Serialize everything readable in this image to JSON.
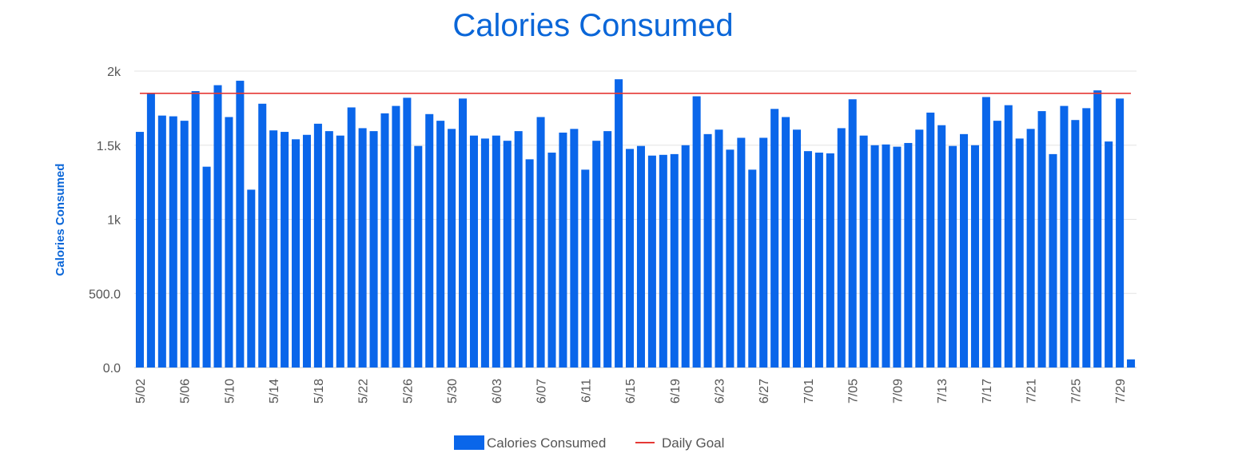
{
  "chart_data": {
    "type": "bar",
    "title": "Calories Consumed",
    "ylabel": "Calories Consumed",
    "xlabel": "",
    "ylim": [
      0,
      2000
    ],
    "y_ticks": [
      "0.0",
      "500.0",
      "1k",
      "1.5k",
      "2k"
    ],
    "y_tick_values": [
      0,
      500,
      1000,
      1500,
      2000
    ],
    "grid": true,
    "legend_position": "bottom",
    "categories": [
      "5/02",
      "5/03",
      "5/04",
      "5/05",
      "5/06",
      "5/07",
      "5/08",
      "5/09",
      "5/10",
      "5/11",
      "5/12",
      "5/13",
      "5/14",
      "5/15",
      "5/16",
      "5/17",
      "5/18",
      "5/19",
      "5/20",
      "5/21",
      "5/22",
      "5/23",
      "5/24",
      "5/25",
      "5/26",
      "5/27",
      "5/28",
      "5/29",
      "5/30",
      "5/31",
      "6/01",
      "6/02",
      "6/03",
      "6/04",
      "6/05",
      "6/06",
      "6/07",
      "6/08",
      "6/09",
      "6/10",
      "6/11",
      "6/12",
      "6/13",
      "6/14",
      "6/15",
      "6/16",
      "6/17",
      "6/18",
      "6/19",
      "6/20",
      "6/21",
      "6/22",
      "6/23",
      "6/24",
      "6/25",
      "6/26",
      "6/27",
      "6/28",
      "6/29",
      "6/30",
      "7/01",
      "7/02",
      "7/03",
      "7/04",
      "7/05",
      "7/06",
      "7/07",
      "7/08",
      "7/09",
      "7/10",
      "7/11",
      "7/12",
      "7/13",
      "7/14",
      "7/15",
      "7/16",
      "7/17",
      "7/18",
      "7/19",
      "7/20",
      "7/21",
      "7/22",
      "7/23",
      "7/24",
      "7/25",
      "7/26",
      "7/27",
      "7/28",
      "7/29",
      "7/30"
    ],
    "x_tick_labels": [
      "5/02",
      "5/06",
      "5/10",
      "5/14",
      "5/18",
      "5/22",
      "5/26",
      "5/30",
      "6/03",
      "6/07",
      "6/11",
      "6/15",
      "6/19",
      "6/23",
      "6/27",
      "7/01",
      "7/05",
      "7/09",
      "7/13",
      "7/17",
      "7/21",
      "7/25",
      "7/29"
    ],
    "series": [
      {
        "name": "Calories Consumed",
        "color": "#0a66ea",
        "values": [
          1590,
          1850,
          1700,
          1695,
          1665,
          1865,
          1355,
          1905,
          1690,
          1935,
          1200,
          1780,
          1600,
          1590,
          1540,
          1570,
          1645,
          1595,
          1565,
          1755,
          1615,
          1595,
          1715,
          1765,
          1820,
          1495,
          1710,
          1665,
          1610,
          1815,
          1565,
          1545,
          1565,
          1530,
          1595,
          1405,
          1690,
          1450,
          1585,
          1610,
          1335,
          1530,
          1595,
          1945,
          1475,
          1495,
          1430,
          1435,
          1440,
          1500,
          1830,
          1575,
          1605,
          1470,
          1550,
          1335,
          1550,
          1745,
          1690,
          1605,
          1460,
          1450,
          1445,
          1615,
          1810,
          1565,
          1500,
          1505,
          1490,
          1515,
          1605,
          1720,
          1635,
          1495,
          1575,
          1500,
          1825,
          1665,
          1770,
          1545,
          1610,
          1730,
          1440,
          1765,
          1670,
          1750,
          1870,
          1525,
          1815,
          55
        ]
      },
      {
        "name": "Daily Goal",
        "color": "#e53935",
        "type": "line",
        "value": 1850
      }
    ]
  }
}
